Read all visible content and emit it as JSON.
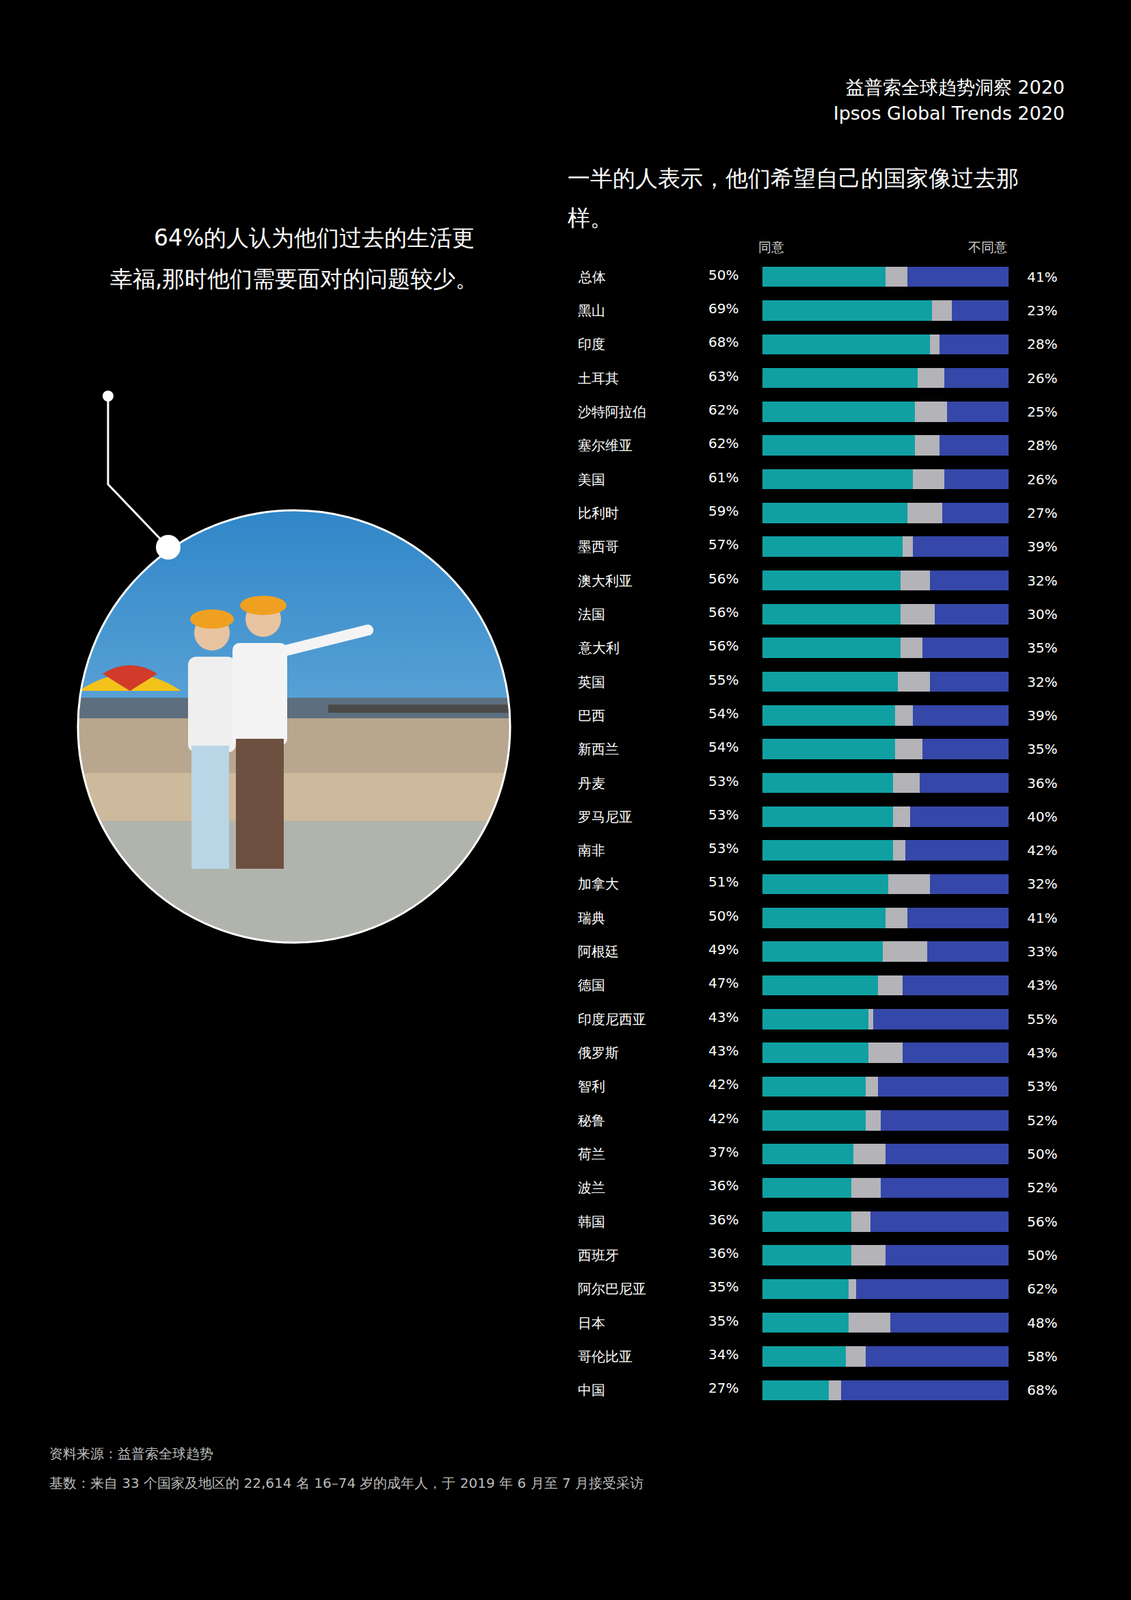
{
  "header": {
    "title_cn": "益普索全球趋势洞察 2020",
    "title_en": "Ipsos Global Trends 2020"
  },
  "intro": "64%的人认为他们过去的生活更幸福,那时他们需要面对的问题较少。",
  "chart_data": {
    "type": "bar",
    "title": "一半的人表示，他们希望自己的国家像过去那样。",
    "orientation": "horizontal",
    "stacked": true,
    "tick_labels": "y",
    "xlim": [
      0,
      100
    ],
    "categories": [
      "总体",
      "黑山",
      "印度",
      "土耳其",
      "沙特阿拉伯",
      "塞尔维亚",
      "美国",
      "比利时",
      "墨西哥",
      "澳大利亚",
      "法国",
      "意大利",
      "英国",
      "巴西",
      "新西兰",
      "丹麦",
      "罗马尼亚",
      "南非",
      "加拿大",
      "瑞典",
      "阿根廷",
      "德国",
      "印度尼西亚",
      "俄罗斯",
      "智利",
      "秘鲁",
      "荷兰",
      "波兰",
      "韩国",
      "西班牙",
      "阿尔巴尼亚",
      "日本",
      "哥伦比亚",
      "中国"
    ],
    "series": [
      {
        "name": "同意",
        "color": "#10a0a2",
        "data_labels": true,
        "values": [
          50,
          69,
          68,
          63,
          62,
          62,
          61,
          59,
          57,
          56,
          56,
          56,
          55,
          54,
          54,
          53,
          53,
          53,
          51,
          50,
          49,
          47,
          43,
          43,
          42,
          42,
          37,
          36,
          36,
          36,
          35,
          35,
          34,
          27
        ],
        "value_labels": [
          "50%",
          "69%",
          "68%",
          "63%",
          "62%",
          "62%",
          "61%",
          "59%",
          "57%",
          "56%",
          "56%",
          "56%",
          "55%",
          "54%",
          "54%",
          "53%",
          "53%",
          "53%",
          "51%",
          "50%",
          "49%",
          "47%",
          "43%",
          "43%",
          "42%",
          "42%",
          "37%",
          "36%",
          "36%",
          "36%",
          "35%",
          "35%",
          "34%",
          "27%"
        ]
      },
      {
        "color": "#b3b3b8",
        "data_labels": false,
        "values": [
          9,
          8,
          4,
          11,
          13,
          10,
          13,
          14,
          4,
          12,
          14,
          9,
          13,
          7,
          11,
          11,
          7,
          5,
          17,
          9,
          18,
          10,
          2,
          14,
          5,
          6,
          13,
          12,
          8,
          14,
          3,
          17,
          8,
          5
        ]
      },
      {
        "name": "不同意",
        "color": "#3547a8",
        "data_labels": true,
        "values": [
          41,
          23,
          28,
          26,
          25,
          28,
          26,
          27,
          39,
          32,
          30,
          35,
          32,
          39,
          35,
          36,
          40,
          42,
          32,
          41,
          33,
          43,
          55,
          43,
          53,
          52,
          50,
          52,
          56,
          50,
          62,
          48,
          58,
          68
        ],
        "value_labels": [
          "41%",
          "23%",
          "28%",
          "26%",
          "25%",
          "28%",
          "26%",
          "27%",
          "39%",
          "32%",
          "30%",
          "35%",
          "32%",
          "39%",
          "35%",
          "36%",
          "40%",
          "42%",
          "32%",
          "41%",
          "33%",
          "43%",
          "55%",
          "43%",
          "53%",
          "52%",
          "50%",
          "52%",
          "56%",
          "50%",
          "62%",
          "48%",
          "58%",
          "68%"
        ]
      }
    ]
  },
  "footer": {
    "source": "资料来源：益普索全球趋势",
    "base": "基数：来自 33 个国家及地区的 22,614 名 16–74 岁的成年人，于 2019 年 6 月至 7 月接受采访"
  }
}
